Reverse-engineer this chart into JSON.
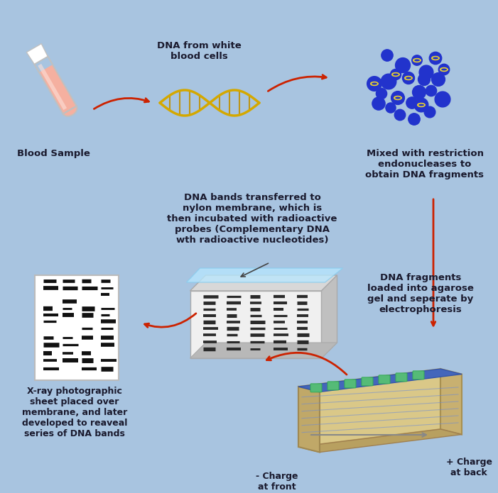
{
  "bg_color": "#a8c4e0",
  "text_color": "#1a1a2e",
  "arrow_color": "#cc2200",
  "label_fontsize": 9.5,
  "blood_sample_label": "Blood Sample",
  "dna_label": "DNA from white\nblood cells",
  "restriction_label": "Mixed with restriction\nendonucleases to\nobtain DNA fragments",
  "gel_label": "DNA fragments\nloaded into agarose\ngel and seperate by\nelectrophoresis",
  "membrane_label": "DNA bands transferred to\nnylon membrane, which is\nthen incubated with radioactive\nprobes (Complementary DNA\nwth radioactive nucleotides)",
  "xray_label": "X-ray photographic\nsheet placed over\nmembrane, and later\ndeveloped to reaveal\nseries of DNA bands",
  "charge_front": "- Charge\nat front",
  "charge_back": "+ Charge\nat back"
}
